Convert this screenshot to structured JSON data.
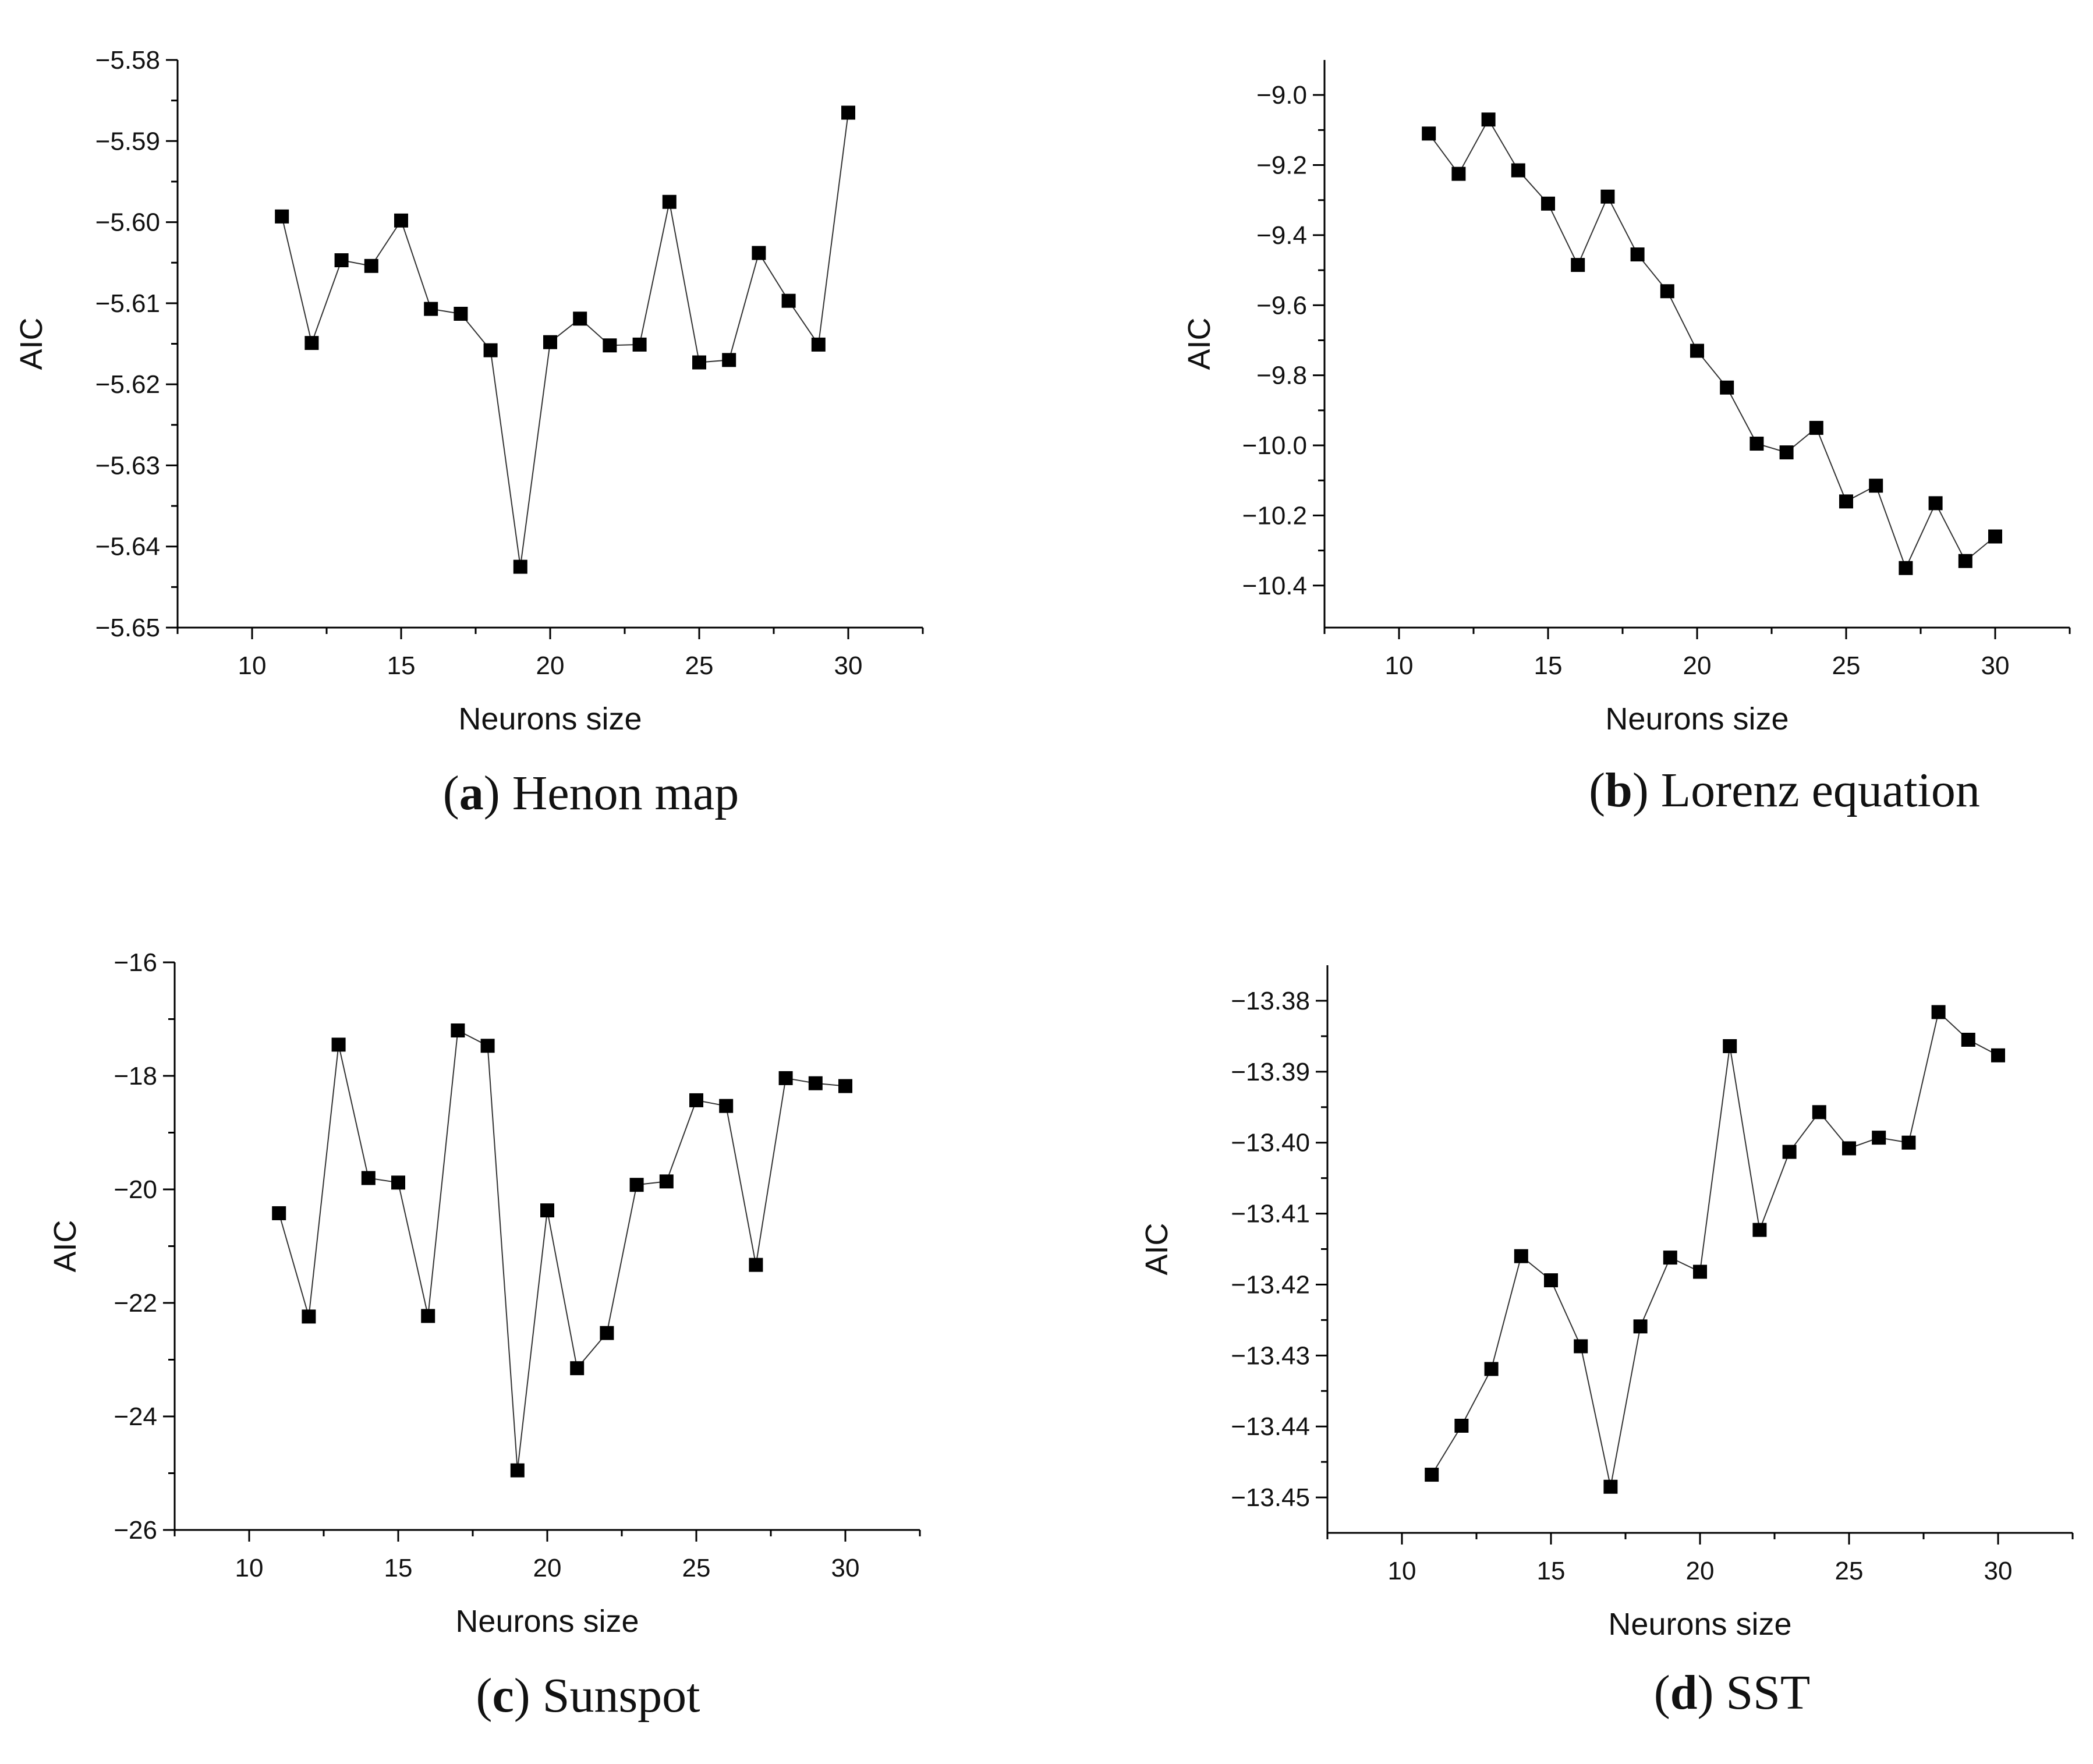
{
  "chart_data": [
    {
      "type": "line",
      "panel": "a",
      "caption_letter": "a",
      "caption_text": "Henon map",
      "xlabel": "Neurons size",
      "ylabel": "AIC",
      "xlim": [
        7.5,
        32.5
      ],
      "ylim": [
        -5.65,
        -5.58
      ],
      "xticks": [
        10,
        15,
        20,
        25,
        30
      ],
      "yticks": [
        -5.65,
        -5.64,
        -5.63,
        -5.62,
        -5.61,
        -5.6,
        -5.59,
        -5.58
      ],
      "ytick_labels": [
        "−5.65",
        "−5.64",
        "−5.63",
        "−5.62",
        "−5.61",
        "−5.60",
        "−5.59",
        "−5.58"
      ],
      "marker": "square",
      "x": [
        11,
        12,
        13,
        14,
        15,
        16,
        17,
        18,
        19,
        20,
        21,
        22,
        23,
        24,
        25,
        26,
        27,
        28,
        29,
        30
      ],
      "y": [
        -5.5993,
        -5.6149,
        -5.6047,
        -5.6054,
        -5.5998,
        -5.6107,
        -5.6113,
        -5.6158,
        -5.6425,
        -5.6148,
        -5.6119,
        -5.6152,
        -5.6151,
        -5.5975,
        -5.6173,
        -5.617,
        -5.6038,
        -5.6097,
        -5.6151,
        -5.5865
      ]
    },
    {
      "type": "line",
      "panel": "b",
      "caption_letter": "b",
      "caption_text": "Lorenz equation",
      "xlabel": "Neurons size",
      "ylabel": "AIC",
      "xlim": [
        7.5,
        32.5
      ],
      "ylim": [
        -10.52,
        -8.9
      ],
      "xticks": [
        10,
        15,
        20,
        25,
        30
      ],
      "yticks": [
        -10.4,
        -10.2,
        -10.0,
        -9.8,
        -9.6,
        -9.4,
        -9.2,
        -9.0
      ],
      "ytick_labels": [
        "−10.4",
        "−10.2",
        "−10.0",
        "−9.8",
        "−9.6",
        "−9.4",
        "−9.2",
        "−9.0"
      ],
      "marker": "square",
      "x": [
        11,
        12,
        13,
        14,
        15,
        16,
        17,
        18,
        19,
        20,
        21,
        22,
        23,
        24,
        25,
        26,
        27,
        28,
        29,
        30
      ],
      "y": [
        -9.11,
        -9.225,
        -9.07,
        -9.215,
        -9.31,
        -9.485,
        -9.29,
        -9.455,
        -9.56,
        -9.73,
        -9.835,
        -9.995,
        -10.02,
        -9.95,
        -10.16,
        -10.115,
        -10.35,
        -10.165,
        -10.33,
        -10.26
      ]
    },
    {
      "type": "line",
      "panel": "c",
      "caption_letter": "c",
      "caption_text": "Sunspot",
      "xlabel": "Neurons size",
      "ylabel": "AIC",
      "xlim": [
        7.5,
        32.5
      ],
      "ylim": [
        -26,
        -16
      ],
      "xticks": [
        10,
        15,
        20,
        25,
        30
      ],
      "yticks": [
        -26,
        -24,
        -22,
        -20,
        -18,
        -16
      ],
      "ytick_labels": [
        "−26",
        "−24",
        "−22",
        "−20",
        "−18",
        "−16"
      ],
      "marker": "square",
      "x": [
        11,
        12,
        13,
        14,
        15,
        16,
        17,
        18,
        19,
        20,
        21,
        22,
        23,
        24,
        25,
        26,
        27,
        28,
        29,
        30
      ],
      "y": [
        -20.42,
        -22.24,
        -17.45,
        -19.8,
        -19.88,
        -22.23,
        -17.2,
        -17.47,
        -24.95,
        -20.37,
        -23.15,
        -22.53,
        -19.92,
        -19.86,
        -18.43,
        -18.53,
        -21.33,
        -18.04,
        -18.13,
        -18.18
      ]
    },
    {
      "type": "line",
      "panel": "d",
      "caption_letter": "d",
      "caption_text": "SST",
      "xlabel": "Neurons size",
      "ylabel": "AIC",
      "xlim": [
        7.5,
        32.5
      ],
      "ylim": [
        -13.455,
        -13.375
      ],
      "xticks": [
        10,
        15,
        20,
        25,
        30
      ],
      "yticks": [
        -13.45,
        -13.44,
        -13.43,
        -13.42,
        -13.41,
        -13.4,
        -13.39,
        -13.38
      ],
      "ytick_labels": [
        "−13.45",
        "−13.44",
        "−13.43",
        "−13.42",
        "−13.41",
        "−13.40",
        "−13.39",
        "−13.38"
      ],
      "marker": "square",
      "x": [
        11,
        12,
        13,
        14,
        15,
        16,
        17,
        18,
        19,
        20,
        21,
        22,
        23,
        24,
        25,
        26,
        27,
        28,
        29,
        30
      ],
      "y": [
        -13.4468,
        -13.4399,
        -13.4319,
        -13.416,
        -13.4194,
        -13.4287,
        -13.4485,
        -13.4259,
        -13.4162,
        -13.4182,
        -13.3864,
        -13.4123,
        -13.4013,
        -13.3957,
        -13.4008,
        -13.3993,
        -13.4,
        -13.3816,
        -13.3855,
        -13.3877
      ]
    }
  ]
}
